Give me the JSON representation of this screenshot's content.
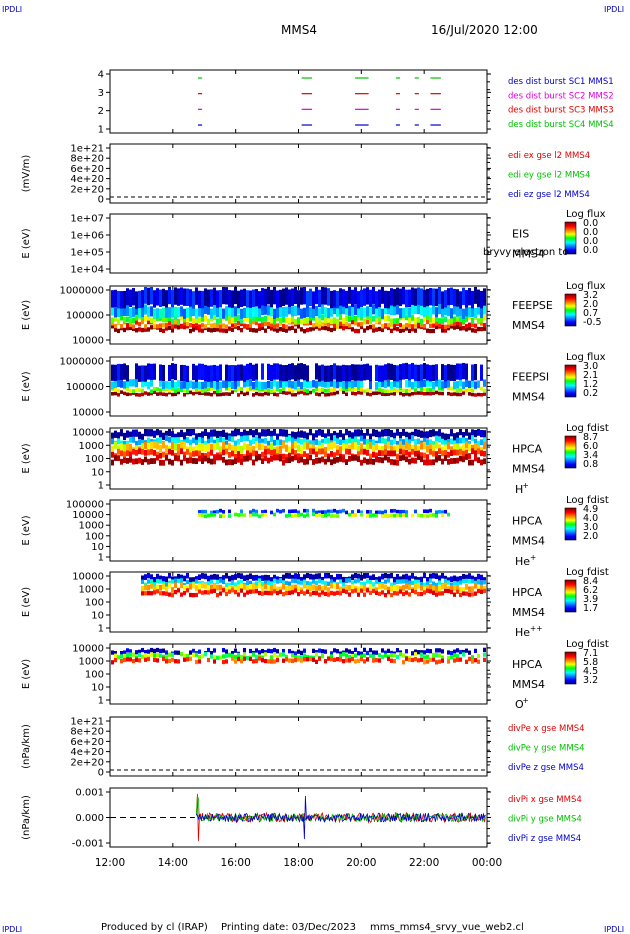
{
  "corner_tl": "IPDLI",
  "corner_tr": "IPDLI",
  "corner_bl": "IPDLI",
  "corner_br": "IPDLI",
  "header": {
    "spacecraft": "MMS4",
    "datetime": "16/Jul/2020 12:00"
  },
  "footer": {
    "produced": "Produced by cl (IRAP)",
    "printing": "Printing date: 03/Dec/2023",
    "file": "mms_mms4_srvy_vue_web2.cl"
  },
  "xaxis": {
    "ticks": [
      "12:00",
      "14:00",
      "16:00",
      "18:00",
      "20:00",
      "22:00",
      "00:00"
    ],
    "values": [
      12,
      14,
      16,
      18,
      20,
      22,
      24
    ]
  },
  "colors": {
    "red": "#e00000",
    "green": "#00c000",
    "blue": "#0000c8",
    "magenta": "#e000e0"
  },
  "panels": {
    "burst": {
      "yticks": [
        "4",
        "3",
        "2",
        "1"
      ],
      "legend": [
        {
          "text": "des dist burst SC1 MMS1",
          "color": "#0000c8"
        },
        {
          "text": "des dist burst SC2 MMS2",
          "color": "#e000e0"
        },
        {
          "text": "des dist burst SC3 MMS3",
          "color": "#e00000"
        },
        {
          "text": "des dist burst SC4 MMS4",
          "color": "#00c000"
        }
      ]
    },
    "edi": {
      "ylabel": "(mV/m)",
      "yticks": [
        "1e+21",
        "8e+20",
        "6e+20",
        "4e+20",
        "2e+20",
        "0"
      ],
      "legend": [
        {
          "text": "edi ex gse l2 MMS4",
          "color": "#e00000"
        },
        {
          "text": "edi ey gse l2 MMS4",
          "color": "#00c000"
        },
        {
          "text": "edi ez gse l2 MMS4",
          "color": "#0000c8"
        }
      ]
    },
    "eis": {
      "ylabel": "E (eV)",
      "yticks": [
        "1e+07",
        "1e+06",
        "1e+05",
        "1e+04"
      ],
      "inst": "EIS",
      "sc": "MMS4",
      "overlay": "bryvy electron to",
      "cbar_title": "Log flux",
      "cbar_ticks": [
        "0.0",
        "0.0",
        "0.0",
        "0.0"
      ]
    },
    "feepse": {
      "ylabel": "E (eV)",
      "yticks": [
        "1000000",
        "100000",
        "10000"
      ],
      "inst": "FEEPSE",
      "sc": "MMS4",
      "cbar_title": "Log flux",
      "cbar_ticks": [
        "3.2",
        "2.0",
        "0.7",
        "-0.5"
      ]
    },
    "feepsi": {
      "ylabel": "E (eV)",
      "yticks": [
        "1000000",
        "100000",
        "10000"
      ],
      "inst": "FEEPSI",
      "sc": "MMS4",
      "cbar_title": "Log flux",
      "cbar_ticks": [
        "3.0",
        "2.1",
        "1.2",
        "0.2"
      ]
    },
    "hpca_h": {
      "ylabel": "E (eV)",
      "yticks": [
        "10000",
        "1000",
        "100",
        "10",
        "1"
      ],
      "inst": "HPCA",
      "sc": "MMS4",
      "species": "H",
      "charge": "+",
      "cbar_title": "Log fdist",
      "cbar_ticks": [
        "8.7",
        "6.0",
        "3.4",
        "0.8"
      ]
    },
    "hpca_he": {
      "ylabel": "E (eV)",
      "yticks": [
        "100000",
        "10000",
        "1000",
        "100",
        "10",
        "1"
      ],
      "inst": "HPCA",
      "sc": "MMS4",
      "species": "He",
      "charge": "+",
      "cbar_title": "Log fdist",
      "cbar_ticks": [
        "4.9",
        "4.0",
        "3.0",
        "2.0"
      ]
    },
    "hpca_hepp": {
      "ylabel": "E (eV)",
      "yticks": [
        "10000",
        "1000",
        "100",
        "10",
        "1"
      ],
      "inst": "HPCA",
      "sc": "MMS4",
      "species": "He",
      "charge": "++",
      "cbar_title": "Log fdist",
      "cbar_ticks": [
        "8.4",
        "6.2",
        "3.9",
        "1.7"
      ]
    },
    "hpca_o": {
      "ylabel": "E (eV)",
      "yticks": [
        "10000",
        "1000",
        "100",
        "10",
        "1"
      ],
      "inst": "HPCA",
      "sc": "MMS4",
      "species": "O",
      "charge": "+",
      "cbar_title": "Log fdist",
      "cbar_ticks": [
        "7.1",
        "5.8",
        "4.5",
        "3.2"
      ]
    },
    "divpe": {
      "ylabel": "(nPa/km)",
      "yticks": [
        "1e+21",
        "8e+20",
        "6e+20",
        "4e+20",
        "2e+20",
        "0"
      ],
      "legend": [
        {
          "text": "divPe x gse MMS4",
          "color": "#e00000"
        },
        {
          "text": "divPe y gse MMS4",
          "color": "#00c000"
        },
        {
          "text": "divPe z gse MMS4",
          "color": "#0000c8"
        }
      ]
    },
    "divpi": {
      "ylabel": "(nPa/km)",
      "yticks": [
        "0.001",
        "0.000",
        "-0.001"
      ],
      "legend": [
        {
          "text": "divPi x gse MMS4",
          "color": "#e00000"
        },
        {
          "text": "divPi y gse MMS4",
          "color": "#00c000"
        },
        {
          "text": "divPi z gse MMS4",
          "color": "#0000c8"
        }
      ]
    }
  },
  "chart_data": [
    {
      "type": "scatter",
      "name": "burst",
      "series": [
        {
          "name": "des dist burst SC1 MMS1",
          "y": 1,
          "intervals": [
            [
              14.8,
              14.9
            ],
            [
              18.1,
              18.4
            ],
            [
              19.8,
              20.2
            ],
            [
              21.1,
              21.2
            ],
            [
              21.7,
              21.8
            ],
            [
              22.2,
              22.5
            ]
          ]
        },
        {
          "name": "des dist burst SC2 MMS2",
          "y": 2,
          "intervals": [
            [
              14.8,
              14.9
            ],
            [
              18.1,
              18.4
            ],
            [
              19.8,
              20.2
            ],
            [
              21.1,
              21.2
            ],
            [
              21.7,
              21.8
            ],
            [
              22.2,
              22.5
            ]
          ]
        },
        {
          "name": "des dist burst SC3 MMS3",
          "y": 3,
          "intervals": [
            [
              14.8,
              14.9
            ],
            [
              18.1,
              18.4
            ],
            [
              19.8,
              20.2
            ],
            [
              21.1,
              21.2
            ],
            [
              21.7,
              21.8
            ],
            [
              22.2,
              22.5
            ]
          ]
        },
        {
          "name": "des dist burst SC4 MMS4",
          "y": 4,
          "intervals": [
            [
              14.8,
              14.9
            ],
            [
              18.1,
              18.4
            ],
            [
              19.8,
              20.2
            ],
            [
              21.1,
              21.2
            ],
            [
              21.7,
              21.8
            ],
            [
              22.2,
              22.5
            ]
          ]
        }
      ],
      "xlim": [
        12,
        24
      ],
      "ylim": [
        0.5,
        4.5
      ]
    },
    {
      "type": "heatmap",
      "name": "feepse",
      "xlim": [
        12,
        24
      ],
      "ylim_log10": [
        4,
        6
      ],
      "bands": [
        {
          "e_log10": [
            4.45,
            4.6
          ],
          "level": 3.2
        },
        {
          "e_log10": [
            4.6,
            4.75
          ],
          "level": 2.4
        },
        {
          "e_log10": [
            4.75,
            4.95
          ],
          "level": 1.5
        },
        {
          "e_log10": [
            4.95,
            5.3
          ],
          "level": 0.6
        },
        {
          "e_log10": [
            5.3,
            5.9
          ],
          "level": -0.2
        }
      ]
    },
    {
      "type": "heatmap",
      "name": "feepsi",
      "xlim": [
        12,
        24
      ],
      "ylim_log10": [
        4,
        6
      ],
      "bands": [
        {
          "e_log10": [
            4.7,
            4.82
          ],
          "level": 3.0
        },
        {
          "e_log10": [
            4.82,
            4.95
          ],
          "level": 1.8
        },
        {
          "e_log10": [
            4.95,
            5.2
          ],
          "level": 1.0
        },
        {
          "e_log10": [
            5.2,
            5.75
          ],
          "level": 0.4
        }
      ]
    },
    {
      "type": "heatmap",
      "name": "hpca_h",
      "xlim": [
        12,
        24
      ],
      "ylim_log10": [
        0,
        4.2
      ],
      "bands": [
        {
          "e_log10": [
            3.5,
            4.0
          ],
          "level": 0.8
        },
        {
          "e_log10": [
            3.1,
            3.5
          ],
          "level": 3.4
        },
        {
          "e_log10": [
            2.6,
            3.1
          ],
          "level": 6.0
        },
        {
          "e_log10": [
            2.2,
            2.6
          ],
          "level": 7.4
        },
        {
          "e_log10": [
            1.8,
            2.2
          ],
          "level": 8.4
        }
      ]
    },
    {
      "type": "heatmap",
      "name": "hpca_he",
      "xlim": [
        12,
        24
      ],
      "ylim_log10": [
        0,
        5
      ],
      "bands": [
        {
          "e_log10": [
            3.9,
            4.2
          ],
          "level": 2.5
        },
        {
          "e_log10": [
            3.6,
            3.9
          ],
          "level": 3.6
        }
      ]
    },
    {
      "type": "heatmap",
      "name": "hpca_hepp",
      "xlim": [
        12,
        24
      ],
      "ylim_log10": [
        0,
        4.2
      ],
      "bands": [
        {
          "e_log10": [
            3.6,
            4.0
          ],
          "level": 2.0
        },
        {
          "e_log10": [
            3.3,
            3.6
          ],
          "level": 3.9
        },
        {
          "e_log10": [
            2.9,
            3.3
          ],
          "level": 6.2
        },
        {
          "e_log10": [
            2.6,
            2.9
          ],
          "level": 7.4
        }
      ]
    },
    {
      "type": "heatmap",
      "name": "hpca_o",
      "xlim": [
        12,
        24
      ],
      "ylim_log10": [
        0,
        4.2
      ],
      "bands": [
        {
          "e_log10": [
            3.5,
            3.8
          ],
          "level": 3.4
        },
        {
          "e_log10": [
            3.2,
            3.5
          ],
          "level": 5.2
        },
        {
          "e_log10": [
            2.9,
            3.2
          ],
          "level": 6.4
        }
      ]
    },
    {
      "type": "line",
      "name": "divpi",
      "xlim": [
        12,
        24
      ],
      "ylim": [
        -0.0015,
        0.0015
      ],
      "series": [
        {
          "name": "divPi x gse MMS4",
          "amp": 0.00025,
          "spike": [
            14.8,
            0.0012
          ]
        },
        {
          "name": "divPi y gse MMS4",
          "amp": 0.0002,
          "spike": [
            14.8,
            0.001
          ]
        },
        {
          "name": "divPi z gse MMS4",
          "amp": 0.00022,
          "spike": [
            18.2,
            0.0011
          ]
        }
      ]
    }
  ]
}
